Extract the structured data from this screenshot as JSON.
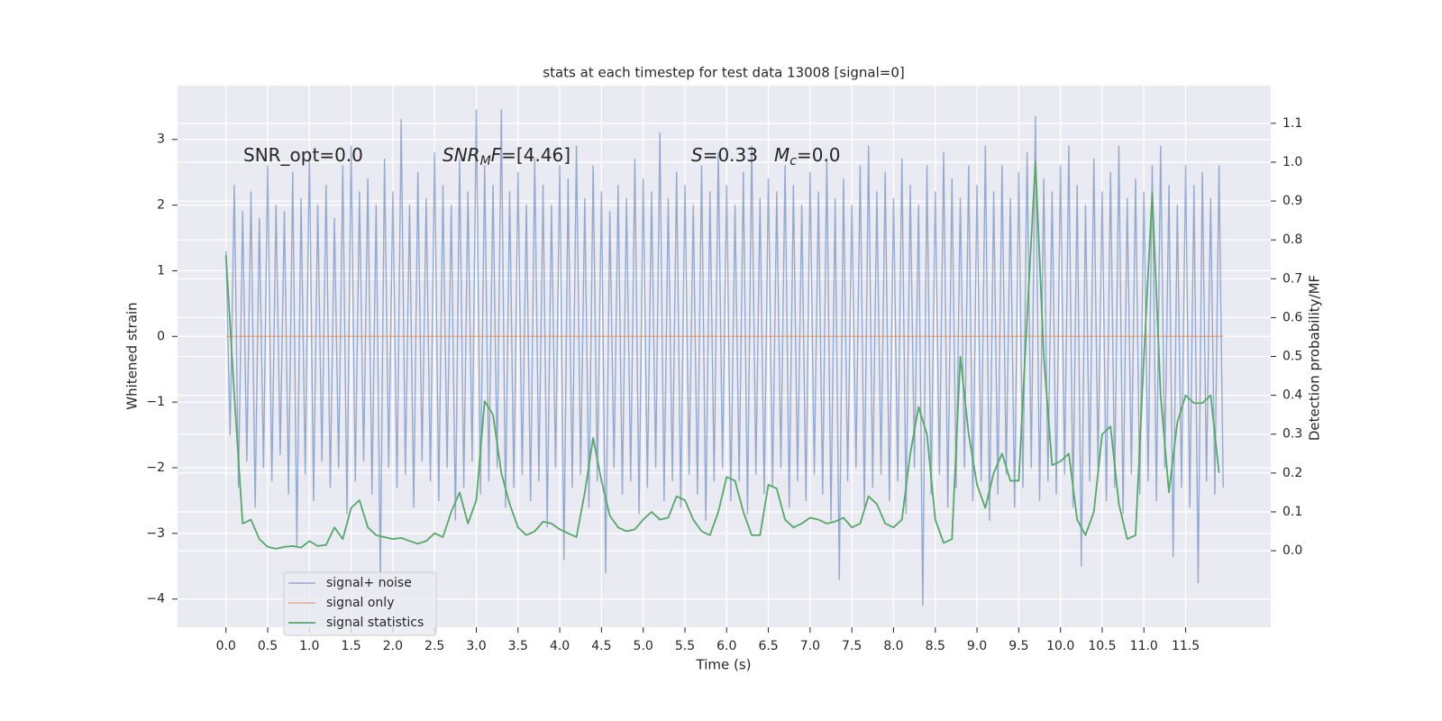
{
  "chart_data": {
    "type": "line",
    "title": "stats at each timestep for test data 13008 [signal=0]",
    "x_label": "Time (s)",
    "y_label": "Whitened strain",
    "y2_label": "Detection probability/MF",
    "annotations": [
      {
        "parts": [
          "SNR_opt=0.0"
        ]
      },
      {
        "parts": [
          "SNR",
          "M",
          "F",
          "=[4.46]"
        ]
      },
      {
        "parts": [
          "S",
          "=0.33"
        ]
      },
      {
        "parts": [
          "M",
          "c",
          "=0.0"
        ]
      }
    ],
    "xlim": [
      -0.58,
      12.52
    ],
    "ylim": [
      -4.43,
      3.82
    ],
    "y2lim": [
      -0.197,
      1.197
    ],
    "xticks": [
      {
        "value": 0,
        "label": "0.0"
      },
      {
        "value": 0.5,
        "label": "0.5"
      },
      {
        "value": 1,
        "label": "1.0"
      },
      {
        "value": 1.5,
        "label": "1.5"
      },
      {
        "value": 2,
        "label": "2.0"
      },
      {
        "value": 2.5,
        "label": "2.5"
      },
      {
        "value": 3,
        "label": "3.0"
      },
      {
        "value": 3.5,
        "label": "3.5"
      },
      {
        "value": 4,
        "label": "4.0"
      },
      {
        "value": 4.5,
        "label": "4.5"
      },
      {
        "value": 5,
        "label": "5.0"
      },
      {
        "value": 5.5,
        "label": "5.5"
      },
      {
        "value": 6,
        "label": "6.0"
      },
      {
        "value": 6.5,
        "label": "6.5"
      },
      {
        "value": 7,
        "label": "7.0"
      },
      {
        "value": 7.5,
        "label": "7.5"
      },
      {
        "value": 8,
        "label": "8.0"
      },
      {
        "value": 8.5,
        "label": "8.5"
      },
      {
        "value": 9,
        "label": "9.0"
      },
      {
        "value": 9.5,
        "label": "9.5"
      },
      {
        "value": 10,
        "label": "10.0"
      },
      {
        "value": 10.5,
        "label": "10.5"
      },
      {
        "value": 11,
        "label": "11.0"
      },
      {
        "value": 11.5,
        "label": "11.5"
      }
    ],
    "yticks": [
      {
        "value": -4,
        "label": "−4"
      },
      {
        "value": -3,
        "label": "−3"
      },
      {
        "value": -2,
        "label": "−2"
      },
      {
        "value": -1,
        "label": "−1"
      },
      0,
      1,
      2,
      3
    ],
    "y2ticks": [
      {
        "value": 0,
        "label": "0.0"
      },
      {
        "value": 0.1,
        "label": "0.1"
      },
      {
        "value": 0.2,
        "label": "0.2"
      },
      {
        "value": 0.3,
        "label": "0.3"
      },
      {
        "value": 0.4,
        "label": "0.4"
      },
      {
        "value": 0.5,
        "label": "0.5"
      },
      {
        "value": 0.6,
        "label": "0.6"
      },
      {
        "value": 0.7,
        "label": "0.7"
      },
      {
        "value": 0.8,
        "label": "0.8"
      },
      {
        "value": 0.9,
        "label": "0.9"
      },
      {
        "value": 1.0,
        "label": "1.0"
      },
      {
        "value": 1.1,
        "label": "1.1"
      }
    ],
    "grid": true,
    "legend": "lower left",
    "series": [
      {
        "name": "signal+ noise",
        "color": "#4c72b0",
        "x": [
          0,
          0.05,
          0.1,
          0.15,
          0.2,
          0.25,
          0.3,
          0.35,
          0.4,
          0.45,
          0.5,
          0.55,
          0.6,
          0.65,
          0.7,
          0.75,
          0.8,
          0.85,
          0.9,
          0.95,
          1,
          1.05,
          1.1,
          1.15,
          1.2,
          1.25,
          1.3,
          1.35,
          1.4,
          1.45,
          1.5,
          1.55,
          1.6,
          1.65,
          1.7,
          1.75,
          1.8,
          1.85,
          1.9,
          1.95,
          2,
          2.05,
          2.1,
          2.15,
          2.2,
          2.25,
          2.3,
          2.35,
          2.4,
          2.45,
          2.5,
          2.55,
          2.6,
          2.65,
          2.7,
          2.75,
          2.8,
          2.85,
          2.9,
          2.95,
          3,
          3.05,
          3.1,
          3.15,
          3.2,
          3.25,
          3.3,
          3.35,
          3.4,
          3.45,
          3.5,
          3.55,
          3.6,
          3.65,
          3.7,
          3.75,
          3.8,
          3.85,
          3.9,
          3.95,
          4,
          4.05,
          4.1,
          4.15,
          4.2,
          4.25,
          4.3,
          4.35,
          4.4,
          4.45,
          4.5,
          4.55,
          4.6,
          4.65,
          4.7,
          4.75,
          4.8,
          4.85,
          4.9,
          4.95,
          5,
          5.05,
          5.1,
          5.15,
          5.2,
          5.25,
          5.3,
          5.35,
          5.4,
          5.45,
          5.5,
          5.55,
          5.6,
          5.65,
          5.7,
          5.75,
          5.8,
          5.85,
          5.9,
          5.95,
          6,
          6.05,
          6.1,
          6.15,
          6.2,
          6.25,
          6.3,
          6.35,
          6.4,
          6.45,
          6.5,
          6.55,
          6.6,
          6.65,
          6.7,
          6.75,
          6.8,
          6.85,
          6.9,
          6.95,
          7,
          7.05,
          7.1,
          7.15,
          7.2,
          7.25,
          7.3,
          7.35,
          7.4,
          7.45,
          7.5,
          7.55,
          7.6,
          7.65,
          7.7,
          7.75,
          7.8,
          7.85,
          7.9,
          7.95,
          8,
          8.05,
          8.1,
          8.15,
          8.2,
          8.25,
          8.3,
          8.35,
          8.4,
          8.45,
          8.5,
          8.55,
          8.6,
          8.65,
          8.7,
          8.75,
          8.8,
          8.85,
          8.9,
          8.95,
          9,
          9.05,
          9.1,
          9.15,
          9.2,
          9.25,
          9.3,
          9.35,
          9.4,
          9.45,
          9.5,
          9.55,
          9.6,
          9.65,
          9.7,
          9.75,
          9.8,
          9.85,
          9.9,
          9.95,
          10,
          10.05,
          10.1,
          10.15,
          10.2,
          10.25,
          10.3,
          10.35,
          10.4,
          10.45,
          10.5,
          10.55,
          10.6,
          10.65,
          10.7,
          10.75,
          10.8,
          10.85,
          10.9,
          10.95,
          11,
          11.05,
          11.1,
          11.15,
          11.2,
          11.25,
          11.3,
          11.35,
          11.4,
          11.45,
          11.5,
          11.55,
          11.6,
          11.65,
          11.7,
          11.75,
          11.8,
          11.85,
          11.9,
          11.95
        ],
        "values": [
          1.3,
          -1.5,
          2.3,
          -2.3,
          1.9,
          -1.9,
          2.2,
          -2.6,
          1.8,
          -2.0,
          2.6,
          -2.2,
          2.0,
          -1.8,
          1.9,
          -2.4,
          2.5,
          -3.2,
          2.1,
          -2.1,
          2.8,
          -2.5,
          2.0,
          -1.9,
          2.3,
          -2.3,
          1.8,
          -2.0,
          2.6,
          -2.7,
          2.9,
          -2.2,
          2.2,
          -1.9,
          2.4,
          -2.4,
          2.0,
          -3.7,
          2.7,
          -2.0,
          2.2,
          -2.3,
          3.3,
          -2.1,
          2.0,
          -2.6,
          2.5,
          -1.9,
          2.1,
          -2.2,
          2.8,
          -2.5,
          2.3,
          -2.0,
          2.0,
          -2.8,
          2.7,
          -2.3,
          2.2,
          -1.9,
          3.45,
          -2.4,
          2.6,
          -2.2,
          2.3,
          -2.0,
          3.45,
          -2.6,
          2.2,
          -2.3,
          2.5,
          -2.1,
          2.0,
          -2.5,
          2.7,
          -2.2,
          2.3,
          -2.9,
          2.0,
          -2.0,
          2.6,
          -3.4,
          2.4,
          -2.3,
          2.9,
          -2.1,
          2.1,
          -2.6,
          2.6,
          -2.2,
          2.2,
          -3.6,
          1.9,
          -2.0,
          2.3,
          -2.4,
          2.1,
          -2.2,
          2.7,
          -2.7,
          2.4,
          -2.3,
          2.2,
          -2.0,
          3.1,
          -2.5,
          2.1,
          -2.2,
          2.5,
          -2.6,
          2.3,
          -2.1,
          2.0,
          -2.4,
          2.6,
          -2.8,
          2.2,
          -2.2,
          2.8,
          -2.0,
          2.3,
          -2.5,
          2.0,
          -2.2,
          2.5,
          -2.7,
          2.9,
          -2.1,
          2.1,
          -2.4,
          2.4,
          -2.3,
          2.2,
          -2.0,
          2.6,
          -2.6,
          2.3,
          -2.2,
          2.0,
          -2.5,
          2.5,
          -2.1,
          2.2,
          -2.4,
          2.7,
          -2.8,
          2.1,
          -3.7,
          2.4,
          -2.2,
          2.0,
          -2.0,
          2.6,
          -2.6,
          2.9,
          -2.3,
          2.2,
          -2.1,
          2.5,
          -2.5,
          2.1,
          -2.2,
          2.7,
          -2.7,
          2.3,
          -2.0,
          2.0,
          -4.1,
          2.6,
          -2.4,
          2.2,
          -2.1,
          2.8,
          -2.6,
          2.4,
          -2.3,
          2.1,
          -2.0,
          2.6,
          -2.5,
          2.3,
          -2.2,
          2.9,
          -2.8,
          2.2,
          -2.4,
          2.6,
          -2.1,
          2.1,
          -2.6,
          2.5,
          -2.3,
          2.8,
          -2.0,
          3.35,
          -2.5,
          2.4,
          -2.2,
          2.2,
          -2.4,
          2.6,
          -2.1,
          2.9,
          -2.6,
          2.3,
          -3.5,
          2.0,
          -2.2,
          2.7,
          -2.0,
          2.2,
          -2.5,
          2.5,
          -2.3,
          2.9,
          -2.7,
          2.1,
          -2.1,
          2.4,
          -2.4,
          2.2,
          -2.2,
          2.6,
          -2.5,
          2.9,
          -2.0,
          2.3,
          -3.35,
          2.0,
          -2.3,
          2.6,
          -2.6,
          2.3,
          -3.75,
          2.5,
          -2.2,
          2.1,
          -2.4,
          2.6,
          -2.3
        ]
      },
      {
        "name": "signal only",
        "color": "#dd8452",
        "x": [
          0,
          11.95
        ],
        "values": [
          0,
          0
        ]
      },
      {
        "name": "signal statistics",
        "color": "#55a868",
        "axis": "y2",
        "x": [
          0,
          0.1,
          0.2,
          0.3,
          0.4,
          0.5,
          0.6,
          0.7,
          0.8,
          0.9,
          1,
          1.1,
          1.2,
          1.3,
          1.4,
          1.5,
          1.6,
          1.7,
          1.8,
          1.9,
          2,
          2.1,
          2.2,
          2.3,
          2.4,
          2.5,
          2.6,
          2.7,
          2.8,
          2.9,
          3,
          3.1,
          3.2,
          3.3,
          3.4,
          3.5,
          3.6,
          3.7,
          3.8,
          3.9,
          4,
          4.1,
          4.2,
          4.3,
          4.4,
          4.5,
          4.6,
          4.7,
          4.8,
          4.9,
          5,
          5.1,
          5.2,
          5.3,
          5.4,
          5.5,
          5.6,
          5.7,
          5.8,
          5.9,
          6,
          6.1,
          6.2,
          6.3,
          6.4,
          6.5,
          6.6,
          6.7,
          6.8,
          6.9,
          7,
          7.1,
          7.2,
          7.3,
          7.4,
          7.5,
          7.6,
          7.7,
          7.8,
          7.9,
          8,
          8.1,
          8.2,
          8.3,
          8.4,
          8.5,
          8.6,
          8.7,
          8.8,
          8.9,
          9,
          9.1,
          9.2,
          9.3,
          9.4,
          9.5,
          9.6,
          9.7,
          9.8,
          9.9,
          10,
          10.1,
          10.2,
          10.3,
          10.4,
          10.5,
          10.6,
          10.7,
          10.8,
          10.9,
          11,
          11.1,
          11.2,
          11.3,
          11.4,
          11.5,
          11.6,
          11.7,
          11.8,
          11.9
        ],
        "values": [
          0.76,
          0.4,
          0.07,
          0.08,
          0.03,
          0.01,
          0.005,
          0.01,
          0.012,
          0.008,
          0.025,
          0.012,
          0.015,
          0.06,
          0.03,
          0.11,
          0.13,
          0.06,
          0.04,
          0.035,
          0.03,
          0.033,
          0.025,
          0.018,
          0.025,
          0.045,
          0.035,
          0.1,
          0.15,
          0.07,
          0.13,
          0.385,
          0.35,
          0.2,
          0.12,
          0.06,
          0.04,
          0.05,
          0.075,
          0.07,
          0.055,
          0.045,
          0.035,
          0.15,
          0.29,
          0.18,
          0.09,
          0.06,
          0.05,
          0.055,
          0.08,
          0.1,
          0.08,
          0.085,
          0.14,
          0.13,
          0.08,
          0.05,
          0.04,
          0.1,
          0.19,
          0.18,
          0.1,
          0.04,
          0.04,
          0.17,
          0.16,
          0.08,
          0.06,
          0.07,
          0.085,
          0.08,
          0.07,
          0.075,
          0.085,
          0.06,
          0.07,
          0.14,
          0.12,
          0.07,
          0.06,
          0.08,
          0.25,
          0.37,
          0.3,
          0.08,
          0.02,
          0.03,
          0.5,
          0.3,
          0.17,
          0.11,
          0.2,
          0.25,
          0.18,
          0.18,
          0.6,
          1.0,
          0.5,
          0.22,
          0.23,
          0.25,
          0.08,
          0.04,
          0.1,
          0.3,
          0.32,
          0.12,
          0.03,
          0.04,
          0.5,
          0.92,
          0.4,
          0.15,
          0.33,
          0.4,
          0.38,
          0.38,
          0.4,
          0.2
        ]
      }
    ]
  }
}
